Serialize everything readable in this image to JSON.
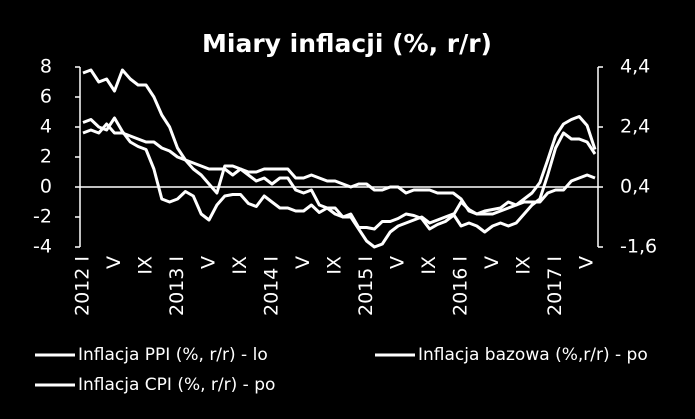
{
  "chart_data": {
    "type": "line",
    "title": "Miary inflacji (%, r/r)",
    "categories": [
      "2012 I",
      null,
      null,
      null,
      "V",
      null,
      null,
      null,
      "IX",
      null,
      null,
      null,
      "2013 I",
      null,
      null,
      null,
      "V",
      null,
      null,
      null,
      "IX",
      null,
      null,
      null,
      "2014 I",
      null,
      null,
      null,
      "V",
      null,
      null,
      null,
      "IX",
      null,
      null,
      null,
      "2015 I",
      null,
      null,
      null,
      "V",
      null,
      null,
      null,
      "IX",
      null,
      null,
      null,
      "2016 I",
      null,
      null,
      null,
      "V",
      null,
      null,
      null,
      "IX",
      null,
      null,
      null,
      "2017 I",
      null,
      null,
      null,
      "V",
      null
    ],
    "series": [
      {
        "name": "Inflacja PPI (%, r/r) - lo",
        "color": "#ffffff",
        "axis": "y",
        "values": [
          4.3,
          4.5,
          4.0,
          3.8,
          4.6,
          3.7,
          3.0,
          2.7,
          2.5,
          1.2,
          -0.8,
          -1.0,
          -0.8,
          -0.3,
          -0.6,
          -1.8,
          -2.2,
          -1.2,
          -0.6,
          -0.5,
          -0.5,
          -1.1,
          -1.3,
          -0.6,
          -1.0,
          -1.4,
          -1.4,
          -1.6,
          -1.6,
          -1.2,
          -1.7,
          -1.4,
          -1.8,
          -2.0,
          -1.8,
          -2.7,
          -2.7,
          -2.8,
          -2.3,
          -2.3,
          -2.1,
          -1.8,
          -1.9,
          -2.1,
          -2.8,
          -2.5,
          -2.3,
          -1.9,
          -1.0,
          -1.5,
          -1.8,
          -1.6,
          -1.5,
          -1.4,
          -1.0,
          -1.2,
          -0.8,
          -0.4,
          0.3,
          1.8,
          3.4,
          4.2,
          4.5,
          4.7,
          4.1,
          2.5
        ]
      },
      {
        "name": "Inflacja bazowa (%,r/r) - po",
        "color": "#ffffff",
        "axis": "y2",
        "values": [
          2.2,
          2.3,
          2.2,
          2.5,
          2.2,
          2.2,
          2.1,
          2.0,
          1.9,
          1.9,
          1.7,
          1.6,
          1.4,
          1.3,
          1.2,
          1.1,
          1.0,
          1.0,
          1.0,
          0.8,
          1.0,
          0.9,
          0.9,
          1.0,
          1.0,
          1.0,
          1.0,
          0.7,
          0.7,
          0.8,
          0.7,
          0.6,
          0.6,
          0.5,
          0.4,
          0.5,
          0.5,
          0.3,
          0.3,
          0.4,
          0.4,
          0.2,
          0.3,
          0.3,
          0.3,
          0.2,
          0.2,
          0.2,
          0.0,
          -0.4,
          -0.5,
          -0.5,
          -0.5,
          -0.4,
          -0.3,
          -0.2,
          -0.1,
          -0.1,
          -0.1,
          0.2,
          0.3,
          0.3,
          0.6,
          0.7,
          0.8,
          0.7
        ]
      },
      {
        "name": "Inflacja CPI (%, r/r) - po",
        "color": "#ffffff",
        "axis": "y2",
        "values": [
          4.2,
          4.3,
          3.9,
          4.0,
          3.6,
          4.3,
          4.0,
          3.8,
          3.8,
          3.4,
          2.8,
          2.4,
          1.7,
          1.3,
          1.0,
          0.8,
          0.5,
          0.2,
          1.1,
          1.1,
          1.0,
          0.8,
          0.6,
          0.7,
          0.5,
          0.7,
          0.7,
          0.3,
          0.2,
          0.3,
          -0.2,
          -0.3,
          -0.3,
          -0.6,
          -0.6,
          -1.0,
          -1.4,
          -1.6,
          -1.5,
          -1.1,
          -0.9,
          -0.8,
          -0.7,
          -0.6,
          -0.8,
          -0.7,
          -0.6,
          -0.5,
          -0.9,
          -0.8,
          -0.9,
          -1.1,
          -0.9,
          -0.8,
          -0.9,
          -0.8,
          -0.5,
          -0.2,
          0.0,
          0.8,
          1.7,
          2.2,
          2.0,
          2.0,
          1.9,
          1.5
        ]
      }
    ],
    "ylim": [
      -4,
      8
    ],
    "yticks": [
      -4,
      -2,
      0,
      2,
      4,
      6,
      8
    ],
    "y2lim": [
      -1.6,
      4.4
    ],
    "y2ticks": [
      {
        "value": -1.6,
        "label": "-1,6"
      },
      {
        "value": 0.4,
        "label": "0,4"
      },
      {
        "value": 2.4,
        "label": "2,4"
      },
      {
        "value": 4.4,
        "label": "4,4"
      }
    ],
    "background": "#000000",
    "legend": "bottom"
  }
}
